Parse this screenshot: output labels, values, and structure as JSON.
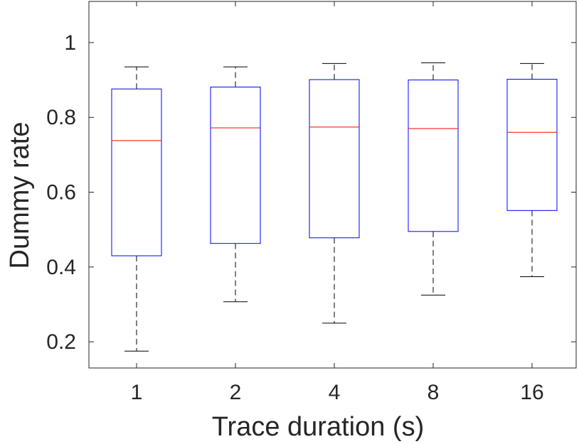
{
  "chart_data": {
    "type": "boxplot",
    "title": "",
    "xlabel": "Trace duration (s)",
    "ylabel": "Dummy rate",
    "ylim": [
      0.13,
      1.11
    ],
    "yticks": [
      "0.2",
      "0.4",
      "0.6",
      "0.8",
      "1"
    ],
    "ytick_values": [
      0.2,
      0.4,
      0.6,
      0.8,
      1.0
    ],
    "categories": [
      "1",
      "2",
      "4",
      "8",
      "16"
    ],
    "boxes": [
      {
        "category": "1",
        "whisker_low": 0.175,
        "q1": 0.43,
        "median": 0.738,
        "q3": 0.876,
        "whisker_high": 0.935
      },
      {
        "category": "2",
        "whisker_low": 0.307,
        "q1": 0.463,
        "median": 0.772,
        "q3": 0.881,
        "whisker_high": 0.935
      },
      {
        "category": "4",
        "whisker_low": 0.25,
        "q1": 0.478,
        "median": 0.774,
        "q3": 0.901,
        "whisker_high": 0.944
      },
      {
        "category": "8",
        "whisker_low": 0.325,
        "q1": 0.495,
        "median": 0.77,
        "q3": 0.9,
        "whisker_high": 0.946
      },
      {
        "category": "16",
        "whisker_low": 0.374,
        "q1": 0.551,
        "median": 0.76,
        "q3": 0.902,
        "whisker_high": 0.944
      }
    ],
    "grid": false,
    "colors": {
      "box": "#0000ff",
      "median": "#ff0000",
      "whisker": "#000000",
      "axis": "#262626"
    }
  }
}
